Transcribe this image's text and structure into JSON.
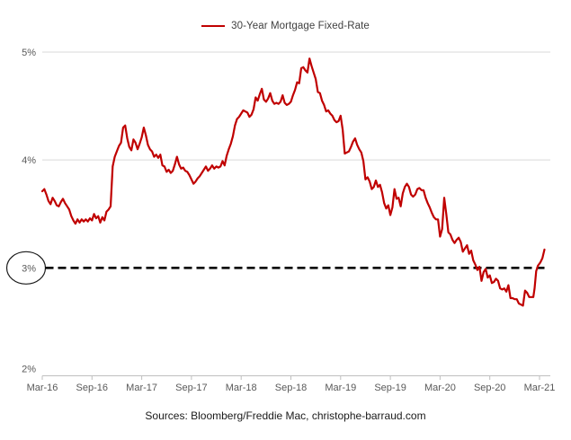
{
  "legend": {
    "label": "30-Year Mortgage Fixed-Rate"
  },
  "source": {
    "text": "Sources: Bloomberg/Freddie Mac, christophe-barraud.com"
  },
  "chart_data": {
    "type": "line",
    "title": "",
    "xlabel": "",
    "ylabel": "",
    "legend_position": "top",
    "grid": "horizontal-partial",
    "colors": {
      "series": "#C00000",
      "axis": "#BFBFBF",
      "gridline": "#D9D9D9",
      "tick_label": "#595959",
      "reference": "#000000"
    },
    "y_axis": {
      "range": [
        2,
        5
      ],
      "ticks": [
        {
          "label": "5%",
          "value": 5,
          "gridline": true,
          "circled": false
        },
        {
          "label": "4%",
          "value": 4,
          "gridline": true,
          "circled": false
        },
        {
          "label": "3%",
          "value": 3,
          "gridline": false,
          "circled": true
        },
        {
          "label": "2%",
          "value": 2,
          "gridline": false,
          "circled": false
        }
      ]
    },
    "x_axis": {
      "unit": "months since Mar-2016",
      "range": [
        0,
        61.3
      ],
      "ticks": [
        {
          "label": "Mar-16",
          "t": 0
        },
        {
          "label": "Sep-16",
          "t": 6
        },
        {
          "label": "Mar-17",
          "t": 12
        },
        {
          "label": "Sep-17",
          "t": 18
        },
        {
          "label": "Mar-18",
          "t": 24
        },
        {
          "label": "Sep-18",
          "t": 30
        },
        {
          "label": "Mar-19",
          "t": 36
        },
        {
          "label": "Sep-19",
          "t": 42
        },
        {
          "label": "Mar-20",
          "t": 48
        },
        {
          "label": "Sep-20",
          "t": 54
        },
        {
          "label": "Mar-21",
          "t": 60
        }
      ]
    },
    "reference_line": {
      "value": 3,
      "style": "dashed",
      "color": "#000000",
      "circled_axis_label": "3%"
    },
    "series": [
      {
        "name": "30-Year Mortgage Fixed-Rate",
        "color": "#C00000",
        "points": [
          [
            0,
            3.71
          ],
          [
            0.25,
            3.73
          ],
          [
            0.5,
            3.68
          ],
          [
            0.75,
            3.62
          ],
          [
            1,
            3.59
          ],
          [
            1.25,
            3.65
          ],
          [
            1.5,
            3.62
          ],
          [
            1.75,
            3.58
          ],
          [
            2,
            3.57
          ],
          [
            2.25,
            3.61
          ],
          [
            2.5,
            3.64
          ],
          [
            2.75,
            3.6
          ],
          [
            3,
            3.57
          ],
          [
            3.25,
            3.54
          ],
          [
            3.5,
            3.48
          ],
          [
            3.75,
            3.44
          ],
          [
            4,
            3.41
          ],
          [
            4.25,
            3.45
          ],
          [
            4.5,
            3.42
          ],
          [
            4.75,
            3.45
          ],
          [
            5,
            3.43
          ],
          [
            5.25,
            3.45
          ],
          [
            5.5,
            3.43
          ],
          [
            5.75,
            3.46
          ],
          [
            6,
            3.44
          ],
          [
            6.25,
            3.5
          ],
          [
            6.5,
            3.46
          ],
          [
            6.75,
            3.48
          ],
          [
            7,
            3.42
          ],
          [
            7.25,
            3.47
          ],
          [
            7.5,
            3.44
          ],
          [
            7.75,
            3.52
          ],
          [
            8,
            3.54
          ],
          [
            8.25,
            3.57
          ],
          [
            8.5,
            3.94
          ],
          [
            8.75,
            4.03
          ],
          [
            9,
            4.08
          ],
          [
            9.25,
            4.13
          ],
          [
            9.5,
            4.16
          ],
          [
            9.75,
            4.3
          ],
          [
            10,
            4.32
          ],
          [
            10.25,
            4.2
          ],
          [
            10.5,
            4.12
          ],
          [
            10.75,
            4.09
          ],
          [
            11,
            4.19
          ],
          [
            11.25,
            4.16
          ],
          [
            11.5,
            4.1
          ],
          [
            11.75,
            4.15
          ],
          [
            12,
            4.21
          ],
          [
            12.25,
            4.3
          ],
          [
            12.5,
            4.23
          ],
          [
            12.75,
            4.14
          ],
          [
            13,
            4.1
          ],
          [
            13.25,
            4.08
          ],
          [
            13.5,
            4.03
          ],
          [
            13.75,
            4.05
          ],
          [
            14,
            4.02
          ],
          [
            14.25,
            4.05
          ],
          [
            14.5,
            3.95
          ],
          [
            14.75,
            3.94
          ],
          [
            15,
            3.89
          ],
          [
            15.25,
            3.91
          ],
          [
            15.5,
            3.88
          ],
          [
            15.75,
            3.9
          ],
          [
            16,
            3.96
          ],
          [
            16.25,
            4.03
          ],
          [
            16.5,
            3.96
          ],
          [
            16.75,
            3.92
          ],
          [
            17,
            3.93
          ],
          [
            17.25,
            3.9
          ],
          [
            17.5,
            3.89
          ],
          [
            17.75,
            3.86
          ],
          [
            18,
            3.82
          ],
          [
            18.25,
            3.78
          ],
          [
            18.5,
            3.8
          ],
          [
            18.75,
            3.83
          ],
          [
            19,
            3.85
          ],
          [
            19.25,
            3.88
          ],
          [
            19.5,
            3.91
          ],
          [
            19.75,
            3.94
          ],
          [
            20,
            3.9
          ],
          [
            20.25,
            3.92
          ],
          [
            20.5,
            3.95
          ],
          [
            20.75,
            3.92
          ],
          [
            21,
            3.94
          ],
          [
            21.25,
            3.93
          ],
          [
            21.5,
            3.94
          ],
          [
            21.75,
            3.99
          ],
          [
            22,
            3.95
          ],
          [
            22.25,
            4.04
          ],
          [
            22.5,
            4.1
          ],
          [
            22.75,
            4.15
          ],
          [
            23,
            4.22
          ],
          [
            23.25,
            4.32
          ],
          [
            23.5,
            4.38
          ],
          [
            23.75,
            4.4
          ],
          [
            24,
            4.43
          ],
          [
            24.25,
            4.46
          ],
          [
            24.5,
            4.45
          ],
          [
            24.75,
            4.44
          ],
          [
            25,
            4.4
          ],
          [
            25.25,
            4.42
          ],
          [
            25.5,
            4.47
          ],
          [
            25.75,
            4.58
          ],
          [
            26,
            4.55
          ],
          [
            26.25,
            4.61
          ],
          [
            26.5,
            4.66
          ],
          [
            26.75,
            4.56
          ],
          [
            27,
            4.54
          ],
          [
            27.25,
            4.57
          ],
          [
            27.5,
            4.62
          ],
          [
            27.75,
            4.55
          ],
          [
            28,
            4.52
          ],
          [
            28.25,
            4.53
          ],
          [
            28.5,
            4.52
          ],
          [
            28.75,
            4.54
          ],
          [
            29,
            4.6
          ],
          [
            29.25,
            4.53
          ],
          [
            29.5,
            4.51
          ],
          [
            29.75,
            4.52
          ],
          [
            30,
            4.54
          ],
          [
            30.25,
            4.6
          ],
          [
            30.5,
            4.65
          ],
          [
            30.75,
            4.72
          ],
          [
            31,
            4.71
          ],
          [
            31.25,
            4.85
          ],
          [
            31.5,
            4.86
          ],
          [
            31.75,
            4.83
          ],
          [
            32,
            4.81
          ],
          [
            32.25,
            4.94
          ],
          [
            32.5,
            4.87
          ],
          [
            32.75,
            4.81
          ],
          [
            33,
            4.75
          ],
          [
            33.25,
            4.63
          ],
          [
            33.5,
            4.62
          ],
          [
            33.75,
            4.55
          ],
          [
            34,
            4.51
          ],
          [
            34.25,
            4.45
          ],
          [
            34.5,
            4.46
          ],
          [
            34.75,
            4.43
          ],
          [
            35,
            4.41
          ],
          [
            35.25,
            4.37
          ],
          [
            35.5,
            4.35
          ],
          [
            35.75,
            4.36
          ],
          [
            36,
            4.41
          ],
          [
            36.25,
            4.28
          ],
          [
            36.5,
            4.06
          ],
          [
            36.75,
            4.07
          ],
          [
            37,
            4.08
          ],
          [
            37.25,
            4.12
          ],
          [
            37.5,
            4.17
          ],
          [
            37.75,
            4.2
          ],
          [
            38,
            4.14
          ],
          [
            38.25,
            4.1
          ],
          [
            38.5,
            4.07
          ],
          [
            38.75,
            3.99
          ],
          [
            39,
            3.82
          ],
          [
            39.25,
            3.84
          ],
          [
            39.5,
            3.8
          ],
          [
            39.75,
            3.73
          ],
          [
            40,
            3.75
          ],
          [
            40.25,
            3.81
          ],
          [
            40.5,
            3.75
          ],
          [
            40.75,
            3.77
          ],
          [
            41,
            3.7
          ],
          [
            41.25,
            3.6
          ],
          [
            41.5,
            3.55
          ],
          [
            41.75,
            3.58
          ],
          [
            42,
            3.49
          ],
          [
            42.25,
            3.56
          ],
          [
            42.5,
            3.73
          ],
          [
            42.75,
            3.64
          ],
          [
            43,
            3.65
          ],
          [
            43.25,
            3.57
          ],
          [
            43.5,
            3.69
          ],
          [
            43.75,
            3.75
          ],
          [
            44,
            3.78
          ],
          [
            44.25,
            3.75
          ],
          [
            44.5,
            3.68
          ],
          [
            44.75,
            3.66
          ],
          [
            45,
            3.68
          ],
          [
            45.25,
            3.73
          ],
          [
            45.5,
            3.74
          ],
          [
            45.75,
            3.72
          ],
          [
            46,
            3.72
          ],
          [
            46.25,
            3.65
          ],
          [
            46.5,
            3.6
          ],
          [
            46.75,
            3.56
          ],
          [
            47,
            3.51
          ],
          [
            47.25,
            3.47
          ],
          [
            47.5,
            3.45
          ],
          [
            47.75,
            3.45
          ],
          [
            48,
            3.29
          ],
          [
            48.25,
            3.36
          ],
          [
            48.5,
            3.65
          ],
          [
            48.75,
            3.5
          ],
          [
            49,
            3.33
          ],
          [
            49.25,
            3.31
          ],
          [
            49.5,
            3.26
          ],
          [
            49.75,
            3.23
          ],
          [
            50,
            3.26
          ],
          [
            50.25,
            3.28
          ],
          [
            50.5,
            3.24
          ],
          [
            50.75,
            3.15
          ],
          [
            51,
            3.18
          ],
          [
            51.25,
            3.21
          ],
          [
            51.5,
            3.13
          ],
          [
            51.75,
            3.16
          ],
          [
            52,
            3.07
          ],
          [
            52.25,
            3.03
          ],
          [
            52.5,
            2.98
          ],
          [
            52.75,
            3.01
          ],
          [
            53,
            2.88
          ],
          [
            53.25,
            2.96
          ],
          [
            53.5,
            2.99
          ],
          [
            53.75,
            2.91
          ],
          [
            54,
            2.93
          ],
          [
            54.25,
            2.86
          ],
          [
            54.5,
            2.87
          ],
          [
            54.75,
            2.9
          ],
          [
            55,
            2.88
          ],
          [
            55.25,
            2.81
          ],
          [
            55.5,
            2.8
          ],
          [
            55.75,
            2.81
          ],
          [
            56,
            2.78
          ],
          [
            56.25,
            2.84
          ],
          [
            56.5,
            2.72
          ],
          [
            56.75,
            2.72
          ],
          [
            57,
            2.71
          ],
          [
            57.25,
            2.71
          ],
          [
            57.5,
            2.67
          ],
          [
            57.75,
            2.66
          ],
          [
            58,
            2.65
          ],
          [
            58.25,
            2.79
          ],
          [
            58.5,
            2.77
          ],
          [
            58.75,
            2.73
          ],
          [
            59,
            2.73
          ],
          [
            59.25,
            2.73
          ],
          [
            59.4,
            2.81
          ],
          [
            59.6,
            2.97
          ],
          [
            59.8,
            3.02
          ],
          [
            60.1,
            3.05
          ],
          [
            60.35,
            3.09
          ],
          [
            60.6,
            3.17
          ]
        ]
      }
    ]
  }
}
